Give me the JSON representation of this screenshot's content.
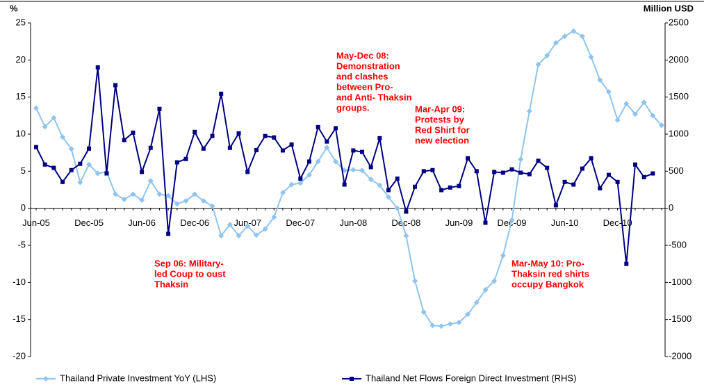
{
  "chart_data": {
    "type": "line",
    "y_label": "%",
    "y2_label": "Million USD",
    "categories": [
      "Jun-05",
      null,
      null,
      null,
      null,
      null,
      "Dec-05",
      null,
      null,
      null,
      null,
      null,
      "Jun-06",
      null,
      null,
      null,
      null,
      null,
      "Dec-06",
      null,
      null,
      null,
      null,
      null,
      "Jun-07",
      null,
      null,
      null,
      null,
      null,
      "Dec-07",
      null,
      null,
      null,
      null,
      null,
      "Jun-08",
      null,
      null,
      null,
      null,
      null,
      "Dec-08",
      null,
      null,
      null,
      null,
      null,
      "Jun-09",
      null,
      null,
      null,
      null,
      null,
      "Dec-09",
      null,
      null,
      null,
      null,
      null,
      "Jun-10",
      null,
      null,
      null,
      null,
      null,
      "Dec-10",
      null,
      null,
      null,
      null,
      null
    ],
    "series": [
      {
        "name": "Thailand Private Investment YoY (LHS)",
        "color": "#8fc4ef",
        "marker": "diamond",
        "values": [
          13.5,
          11,
          12.2,
          9.6,
          8,
          3.5,
          5.9,
          4.7,
          4.9,
          1.9,
          1.2,
          1.9,
          1.1,
          3.7,
          1.9,
          1.7,
          0.6,
          1.0,
          1.9,
          1.0,
          0.3,
          -3.7,
          -2.2,
          -3.7,
          -2.4,
          -3.6,
          -2.8,
          -1.2,
          2.1,
          3.2,
          3.4,
          4.5,
          6.3,
          8.2,
          6.3,
          5.1,
          5.2,
          5.1,
          3.9,
          3.1,
          1.5,
          0,
          -3.7,
          -9.8,
          -14,
          -15.8,
          -15.9,
          -15.6,
          -15.4,
          -14.3,
          -12.7,
          -11,
          -9.8,
          -6.4,
          -1.6,
          6.6,
          13.1,
          19.4,
          20.6,
          22.3,
          23.2,
          23.9,
          23.2,
          20.4,
          17.3,
          15.7,
          11.9,
          14.1,
          12.7,
          14.3,
          12.5,
          11.2
        ]
      },
      {
        "name": "Thailand Net Flows Foreign Direct Investment (RHS)",
        "color": "#000080",
        "marker": "square",
        "axis": "y2",
        "values": [
          825,
          590,
          545,
          355,
          515,
          600,
          805,
          1900,
          470,
          1660,
          920,
          1020,
          490,
          815,
          1340,
          -345,
          620,
          665,
          1030,
          805,
          975,
          1545,
          815,
          1010,
          490,
          785,
          975,
          955,
          780,
          860,
          400,
          630,
          1095,
          900,
          1080,
          320,
          780,
          760,
          555,
          945,
          245,
          400,
          -45,
          290,
          500,
          515,
          245,
          280,
          300,
          675,
          500,
          -195,
          490,
          480,
          525,
          480,
          460,
          640,
          545,
          40,
          355,
          320,
          535,
          675,
          270,
          450,
          355,
          -750,
          590,
          420,
          470,
          null
        ]
      }
    ],
    "ylim": [
      -20,
      25
    ],
    "yticks": [
      -20,
      -15,
      -10,
      -5,
      0,
      5,
      10,
      15,
      20,
      25
    ],
    "y2lim": [
      -2000,
      2500
    ],
    "y2ticks": [
      -2000,
      -1500,
      -1000,
      -500,
      0,
      500,
      1000,
      1500,
      2000,
      2500
    ],
    "grid": false,
    "legend": "bottom",
    "annotations": [
      {
        "lines": [
          "Sep 06: Military-",
          "led Coup to oust",
          "Thaksin"
        ]
      },
      {
        "lines": [
          "May-Dec 08:",
          "Demonstration",
          "and clashes",
          "between Pro-",
          "and Anti- Thaksin",
          "groups."
        ]
      },
      {
        "lines": [
          "Mar-Apr 09:",
          "Protests by",
          "Red Shirt for",
          "new election"
        ]
      },
      {
        "lines": [
          "Mar-May 10: Pro-",
          "Thaksin red shirts",
          "occupy Bangkok"
        ]
      }
    ]
  }
}
